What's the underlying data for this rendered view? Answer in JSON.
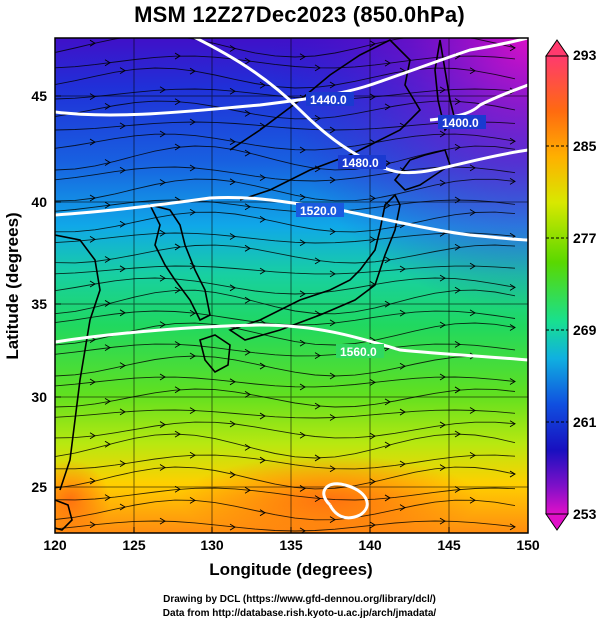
{
  "title": "MSM 12Z27Dec2023 (850.0hPa)",
  "map": {
    "x_range": [
      120,
      150
    ],
    "y_range": [
      22.5,
      48
    ],
    "x_ticks": [
      "120",
      "125",
      "130",
      "135",
      "140",
      "145",
      "150"
    ],
    "y_ticks": [
      "25",
      "30",
      "35",
      "40",
      "45"
    ],
    "xlabel": "Longitude (degrees)",
    "ylabel": "Latitude  (degrees)",
    "grid": true,
    "contour_labels": [
      "1440.0",
      "1400.0",
      "1480.0",
      "1520.0",
      "1560.0"
    ],
    "field": "temperature (K), shaded",
    "vectors": "streamlines, black"
  },
  "colorbar": {
    "ticks": [
      "293",
      "285",
      "277",
      "269",
      "261",
      "253"
    ],
    "min": 253,
    "max": 293,
    "colors": [
      "#ff3a6e",
      "#ff6a10",
      "#ffb000",
      "#d8e800",
      "#5ad800",
      "#18e090",
      "#10b0e0",
      "#1050e0",
      "#1810c0",
      "#8010c8",
      "#e010c8"
    ]
  },
  "credits": {
    "line1": "Drawing by DCL (https://www.gfd-dennou.org/library/dcl/)",
    "line2": "Data from http://database.rish.kyoto-u.ac.jp/arch/jmadata/"
  }
}
